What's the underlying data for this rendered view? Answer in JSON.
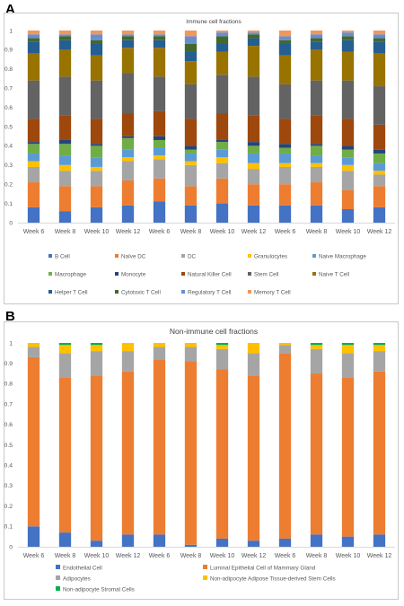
{
  "panels": {
    "a_letter": "A",
    "b_letter": "B"
  },
  "chart_data": [
    {
      "type": "bar",
      "stacked": true,
      "title": "Immune cell fractions",
      "ylim": [
        0,
        1
      ],
      "yticks": [
        "0",
        "0.1",
        "0.2",
        "0.3",
        "0.4",
        "0.5",
        "0.6",
        "0.7",
        "0.8",
        "0.9",
        "1"
      ],
      "grid": false,
      "legend_position": "bottom",
      "categories": [
        "Week 6",
        "Week 8",
        "Week 10",
        "Week 12",
        "Week 6",
        "Week 8",
        "Week 10",
        "Week 12",
        "Week 6",
        "Week 8",
        "Week 10",
        "Week 12"
      ],
      "series": [
        {
          "name": "B Cell",
          "color": "#4472C4",
          "values": [
            0.08,
            0.06,
            0.08,
            0.09,
            0.11,
            0.09,
            0.1,
            0.09,
            0.09,
            0.09,
            0.07,
            0.08
          ]
        },
        {
          "name": "Naïve DC",
          "color": "#ED7D31",
          "values": [
            0.13,
            0.13,
            0.11,
            0.13,
            0.12,
            0.1,
            0.13,
            0.11,
            0.11,
            0.12,
            0.1,
            0.11
          ]
        },
        {
          "name": "DC",
          "color": "#A5A5A5",
          "values": [
            0.08,
            0.08,
            0.08,
            0.1,
            0.1,
            0.11,
            0.08,
            0.08,
            0.09,
            0.08,
            0.1,
            0.06
          ]
        },
        {
          "name": "Granulocytes",
          "color": "#FFC000",
          "values": [
            0.03,
            0.03,
            0.02,
            0.02,
            0.02,
            0.02,
            0.03,
            0.03,
            0.02,
            0.02,
            0.03,
            0.02
          ]
        },
        {
          "name": "Naive Macrophage",
          "color": "#5B9BD5",
          "values": [
            0.04,
            0.05,
            0.05,
            0.04,
            0.04,
            0.04,
            0.04,
            0.05,
            0.05,
            0.04,
            0.04,
            0.04
          ]
        },
        {
          "name": "Macrophage",
          "color": "#70AD47",
          "values": [
            0.05,
            0.06,
            0.06,
            0.06,
            0.04,
            0.02,
            0.04,
            0.04,
            0.03,
            0.05,
            0.04,
            0.05
          ]
        },
        {
          "name": "Monocyte",
          "color": "#264478",
          "values": [
            0.01,
            0.02,
            0.01,
            0.01,
            0.02,
            0.02,
            0.01,
            0.02,
            0.02,
            0.01,
            0.02,
            0.02
          ]
        },
        {
          "name": "Natural Killer Cell",
          "color": "#9E480E",
          "values": [
            0.12,
            0.13,
            0.13,
            0.12,
            0.13,
            0.14,
            0.14,
            0.14,
            0.13,
            0.15,
            0.14,
            0.13
          ]
        },
        {
          "name": "Stem Cell",
          "color": "#636363",
          "values": [
            0.2,
            0.2,
            0.2,
            0.21,
            0.18,
            0.18,
            0.2,
            0.2,
            0.18,
            0.18,
            0.2,
            0.2
          ]
        },
        {
          "name": "Naive T Cell",
          "color": "#997300",
          "values": [
            0.14,
            0.14,
            0.13,
            0.13,
            0.15,
            0.12,
            0.12,
            0.16,
            0.15,
            0.16,
            0.15,
            0.17
          ]
        },
        {
          "name": "Helper T Cell",
          "color": "#255E91",
          "values": [
            0.06,
            0.05,
            0.06,
            0.04,
            0.04,
            0.05,
            0.04,
            0.04,
            0.06,
            0.04,
            0.06,
            0.06
          ]
        },
        {
          "name": "Cytotoxic T Cell",
          "color": "#43682B",
          "values": [
            0.02,
            0.02,
            0.02,
            0.02,
            0.02,
            0.04,
            0.04,
            0.02,
            0.02,
            0.02,
            0.02,
            0.02
          ]
        },
        {
          "name": "Regulatory T Cell",
          "color": "#698ED0",
          "values": [
            0.02,
            0.01,
            0.03,
            0.01,
            0.01,
            0.04,
            0.02,
            0.01,
            0.02,
            0.02,
            0.02,
            0.02
          ]
        },
        {
          "name": "Memory T Cell",
          "color": "#F1975A",
          "values": [
            0.02,
            0.02,
            0.02,
            0.02,
            0.02,
            0.03,
            0.01,
            0.01,
            0.03,
            0.02,
            0.01,
            0.02
          ]
        }
      ]
    },
    {
      "type": "bar",
      "stacked": true,
      "title": "Non-immune cell fractions",
      "ylim": [
        0,
        1
      ],
      "yticks": [
        "0",
        "0.1",
        "0.2",
        "0.3",
        "0.4",
        "0.5",
        "0.6",
        "0.7",
        "0.8",
        "0.9",
        "1"
      ],
      "grid": false,
      "legend_position": "bottom",
      "categories": [
        "Week 6",
        "Week 8",
        "Week 10",
        "Week 12",
        "Week 6",
        "Week 8",
        "Week 10",
        "Week 12",
        "Week 6",
        "Week 8",
        "Week 10",
        "Week 12"
      ],
      "series": [
        {
          "name": "Endothelial Cell",
          "color": "#4472C4",
          "values": [
            0.1,
            0.07,
            0.03,
            0.06,
            0.06,
            0.01,
            0.04,
            0.03,
            0.04,
            0.06,
            0.05,
            0.06
          ]
        },
        {
          "name": "Luminal Epithelial Cell of Mammary Gland",
          "color": "#ED7D31",
          "values": [
            0.83,
            0.76,
            0.81,
            0.8,
            0.86,
            0.9,
            0.83,
            0.81,
            0.91,
            0.79,
            0.78,
            0.8
          ]
        },
        {
          "name": "Adipocytes",
          "color": "#A5A5A5",
          "values": [
            0.05,
            0.12,
            0.12,
            0.1,
            0.06,
            0.07,
            0.1,
            0.11,
            0.04,
            0.12,
            0.12,
            0.1
          ]
        },
        {
          "name": "Non-adipocyte Adipose Tissue-derived Stem Cells",
          "color": "#FFC000",
          "values": [
            0.02,
            0.04,
            0.03,
            0.04,
            0.02,
            0.02,
            0.02,
            0.05,
            0.01,
            0.02,
            0.04,
            0.03
          ]
        },
        {
          "name": "Non-adipocyte Stromal Cells",
          "color": "#00B050",
          "values": [
            0.0,
            0.01,
            0.01,
            0.0,
            0.0,
            0.0,
            0.01,
            0.0,
            0.0,
            0.01,
            0.01,
            0.01
          ]
        }
      ]
    }
  ]
}
